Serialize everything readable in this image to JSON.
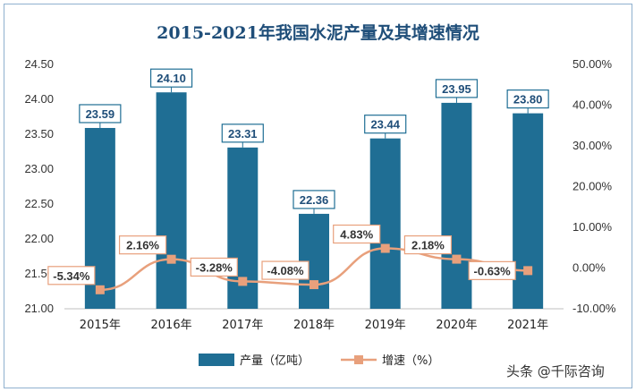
{
  "chart_data": {
    "type": "bar",
    "title": "2015-2021年我国水泥产量及其增速情况",
    "categories": [
      "2015年",
      "2016年",
      "2017年",
      "2018年",
      "2019年",
      "2020年",
      "2021年"
    ],
    "series": [
      {
        "name": "产量（亿吨）",
        "type": "bar",
        "axis": "left",
        "values": [
          23.59,
          24.1,
          23.31,
          22.36,
          23.44,
          23.95,
          23.8
        ],
        "labels": [
          "23.59",
          "24.10",
          "23.31",
          "22.36",
          "23.44",
          "23.95",
          "23.80"
        ],
        "color": "#1f6e94"
      },
      {
        "name": "增速（%）",
        "type": "line",
        "axis": "right",
        "values": [
          -5.34,
          2.16,
          -3.28,
          -4.08,
          4.83,
          2.18,
          -0.63
        ],
        "labels": [
          "-5.34%",
          "2.16%",
          "-3.28%",
          "-4.08%",
          "4.83%",
          "2.18%",
          "-0.63%"
        ],
        "color": "#e8a07c"
      }
    ],
    "ylim_left": [
      21.0,
      24.5
    ],
    "left_ticks": [
      "21.00",
      "21.50",
      "22.00",
      "22.50",
      "23.00",
      "23.50",
      "24.00",
      "24.50"
    ],
    "ylim_right": [
      -10,
      50
    ],
    "right_ticks": [
      "-10.00%",
      "0.00%",
      "10.00%",
      "20.00%",
      "30.00%",
      "40.00%",
      "50.00%"
    ],
    "grid": false,
    "legend_position": "bottom"
  },
  "colors": {
    "bar": "#1f6e94",
    "line": "#e8a07c",
    "label_border_bar": "#1f6e94",
    "label_border_line": "#e8a07c",
    "title": "#1f4e79"
  },
  "watermark": "头条 @千际咨询"
}
